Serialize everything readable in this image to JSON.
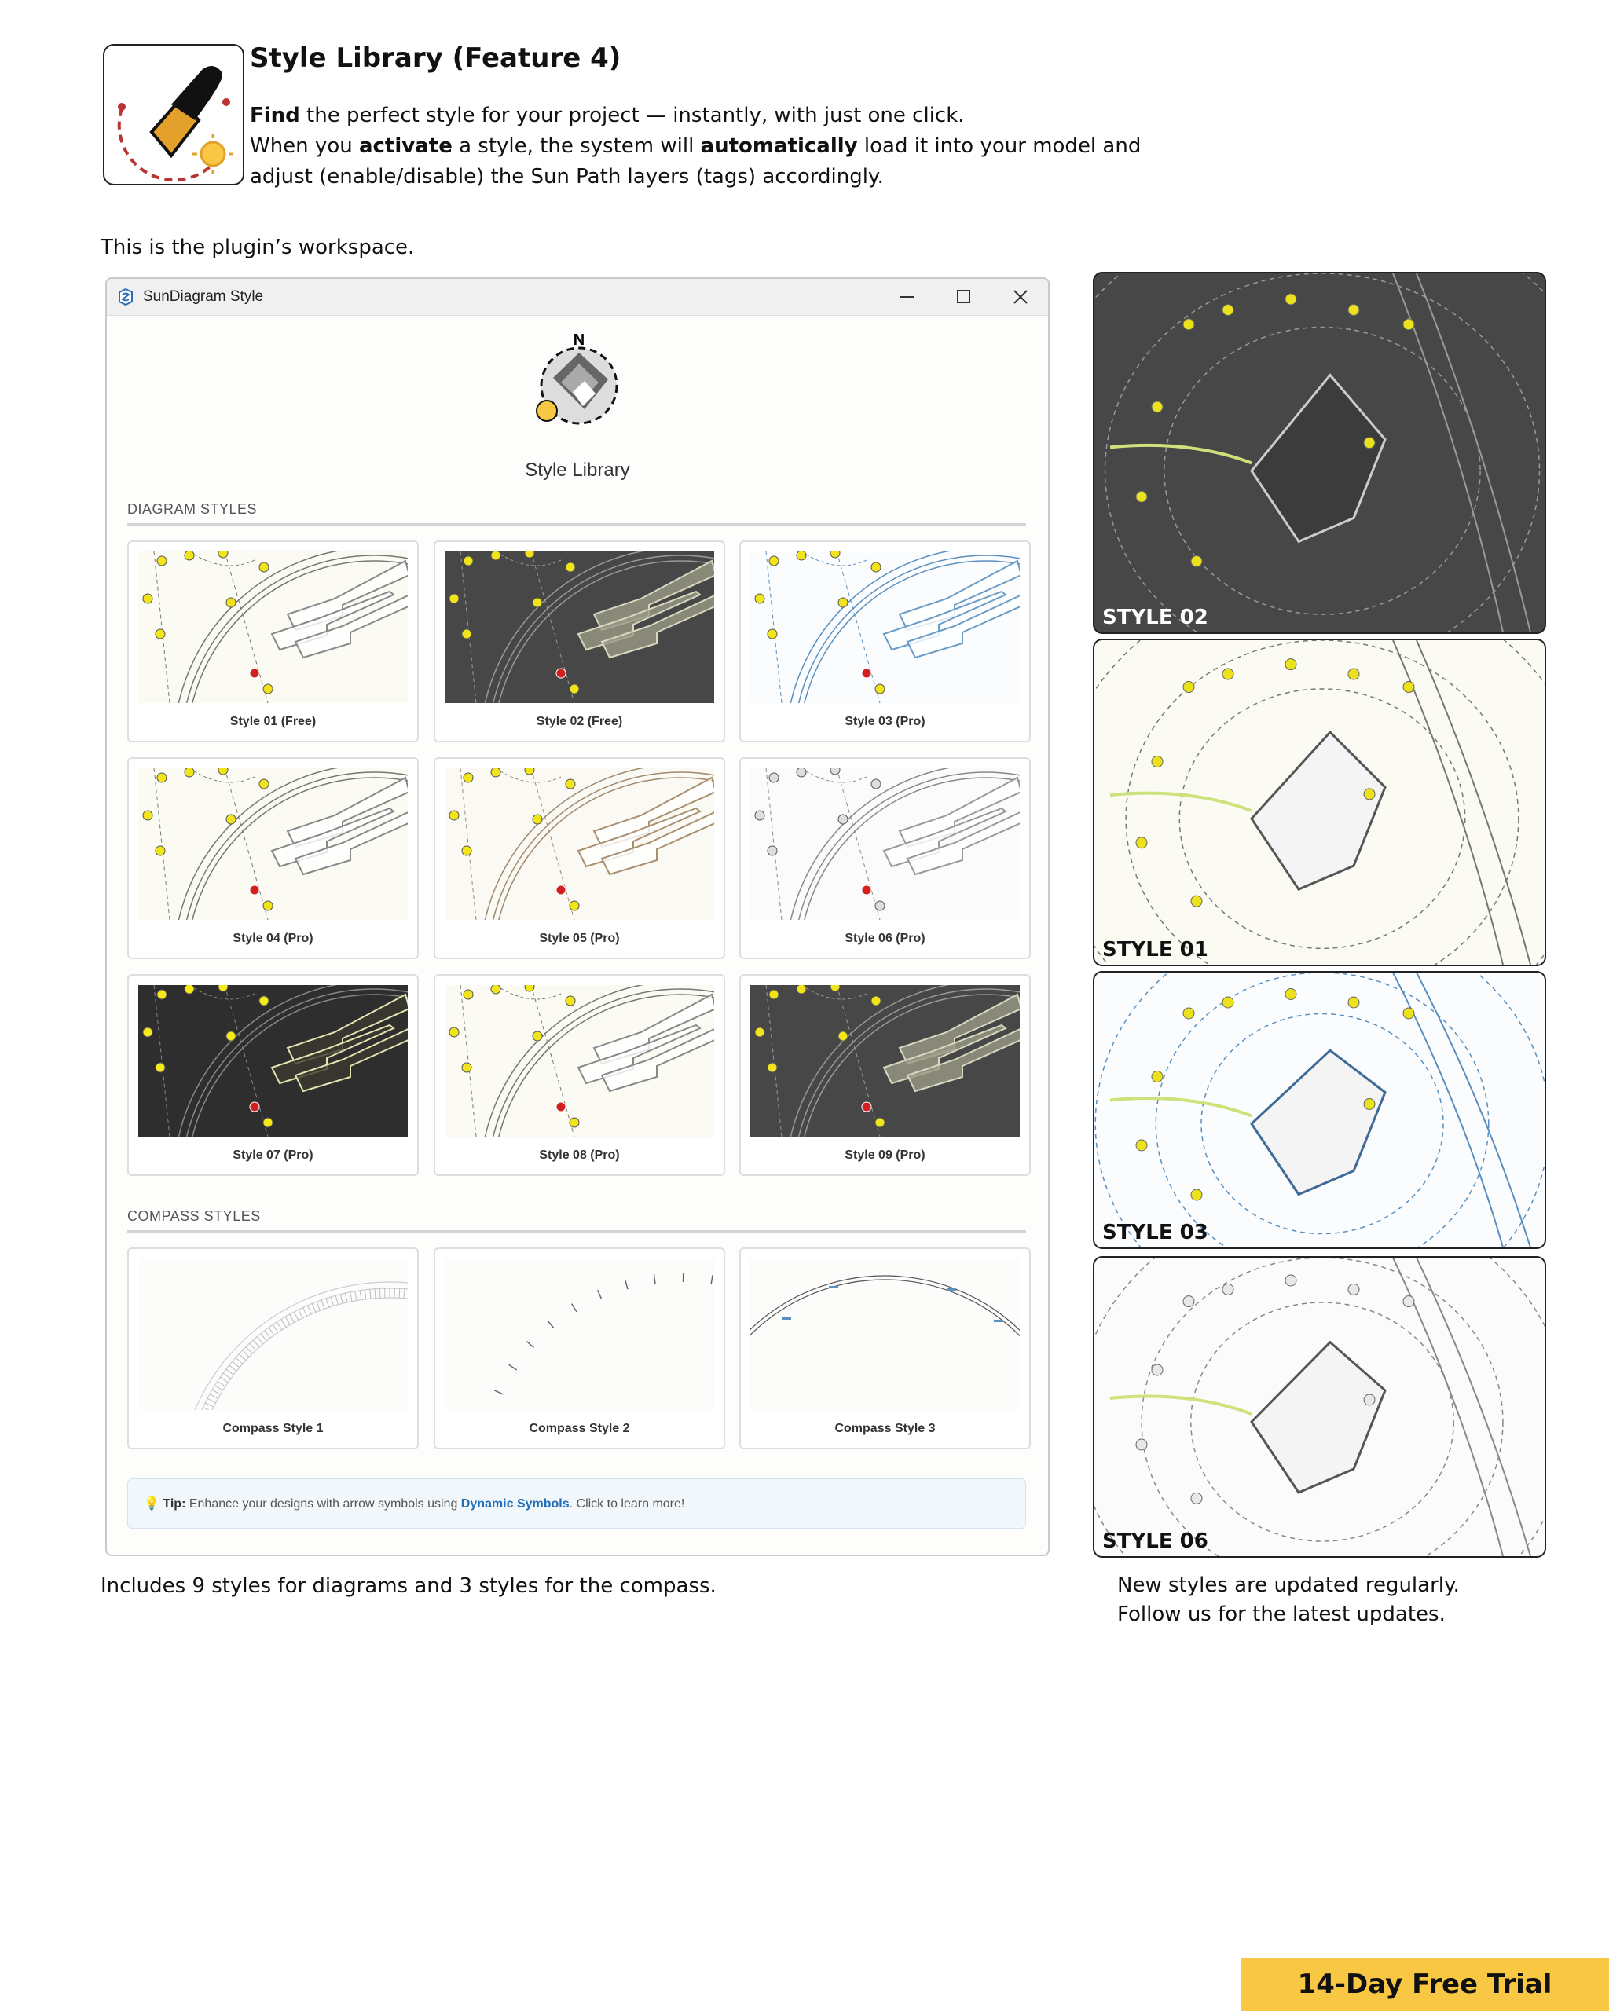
{
  "header": {
    "title": "Style Library (Feature 4)",
    "lines": [
      [
        {
          "text": "Find",
          "bold": true
        },
        {
          "text": " the perfect style for your project — instantly, with just one click.",
          "bold": false
        }
      ],
      [
        {
          "text": "When you ",
          "bold": false
        },
        {
          "text": "activate",
          "bold": true
        },
        {
          "text": " a style, the system will ",
          "bold": false
        },
        {
          "text": "automatically",
          "bold": true
        },
        {
          "text": " load it into your model and",
          "bold": false
        }
      ],
      [
        {
          "text": "adjust (enable/disable) the Sun Path layers (tags) accordingly.",
          "bold": false
        }
      ]
    ]
  },
  "intro": "This is the plugin’s workspace.",
  "window": {
    "title": "SunDiagram Style",
    "heading": "Style Library",
    "sections": [
      {
        "title": "DIAGRAM STYLES",
        "kind": "diagram",
        "items": [
          {
            "name": "Style 01 (Free)",
            "theme": "light"
          },
          {
            "name": "Style 02 (Free)",
            "theme": "dark"
          },
          {
            "name": "Style 03 (Pro)",
            "theme": "blue"
          },
          {
            "name": "Style 04 (Pro)",
            "theme": "light"
          },
          {
            "name": "Style 05 (Pro)",
            "theme": "brown"
          },
          {
            "name": "Style 06 (Pro)",
            "theme": "grey"
          },
          {
            "name": "Style 07 (Pro)",
            "theme": "black"
          },
          {
            "name": "Style 08 (Pro)",
            "theme": "light"
          },
          {
            "name": "Style 09 (Pro)",
            "theme": "dark"
          }
        ]
      },
      {
        "title": "COMPASS STYLES",
        "kind": "compass",
        "items": [
          {
            "name": "Compass Style 1",
            "theme": "light"
          },
          {
            "name": "Compass Style 2",
            "theme": "light"
          },
          {
            "name": "Compass Style 3",
            "theme": "blue"
          }
        ]
      }
    ],
    "tip": {
      "label": "Tip:",
      "text": " Enhance your designs with arrow symbols using ",
      "link": "Dynamic Symbols",
      "after": ". Click to learn more!"
    }
  },
  "previews": [
    {
      "label": "STYLE 02",
      "theme": "dark"
    },
    {
      "label": "STYLE 01",
      "theme": "light"
    },
    {
      "label": "STYLE 03",
      "theme": "blue"
    },
    {
      "label": "STYLE 06",
      "theme": "grey"
    }
  ],
  "caption_left": "Includes 9 styles for diagrams and 3 styles for the compass.",
  "caption_right": [
    "New styles are updated regularly.",
    "Follow us for the latest updates."
  ],
  "cta": "14-Day Free Trial"
}
